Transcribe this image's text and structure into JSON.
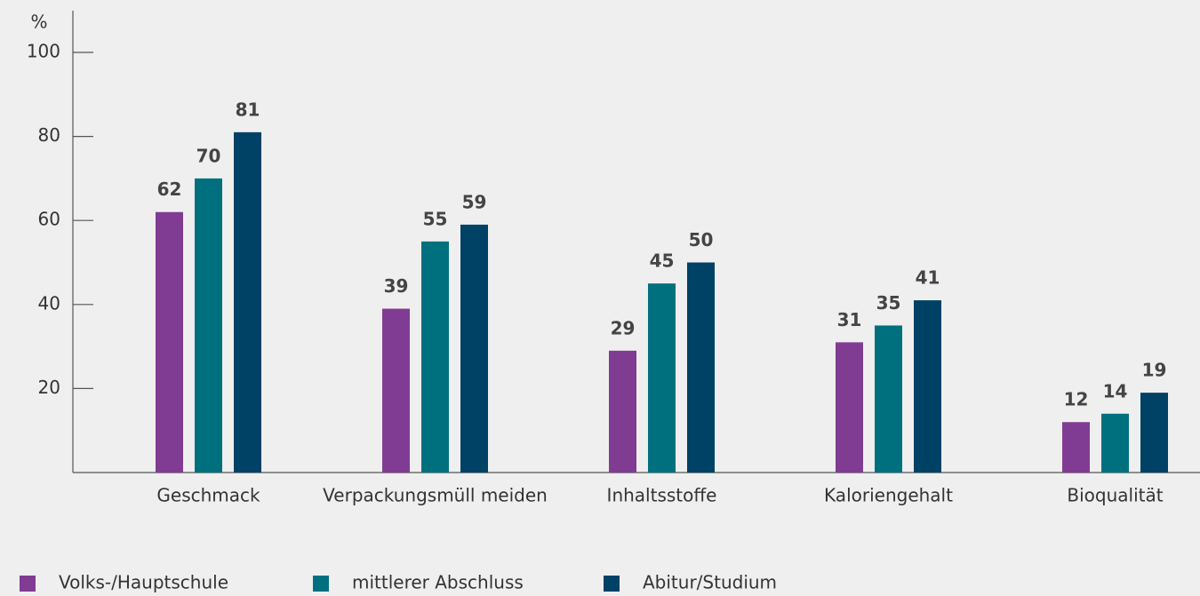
{
  "chart_data": {
    "type": "bar",
    "y_label": "%",
    "categories": [
      "Geschmack",
      "Verpackungsmüll meiden",
      "Inhaltsstoffe",
      "Kaloriengehalt",
      "Bioqualität"
    ],
    "series": [
      {
        "name": "Volks-/Hauptschule",
        "color": "#803c92",
        "values": [
          62,
          39,
          29,
          31,
          12
        ]
      },
      {
        "name": "mittlerer Abschluss",
        "color": "#00707f",
        "values": [
          70,
          55,
          45,
          35,
          14
        ]
      },
      {
        "name": "Abitur/Studium",
        "color": "#004166",
        "values": [
          81,
          59,
          50,
          41,
          19
        ]
      }
    ],
    "ylim": [
      0,
      100
    ],
    "yticks": [
      20,
      40,
      60,
      80,
      100
    ],
    "legend": "bottom-left"
  }
}
